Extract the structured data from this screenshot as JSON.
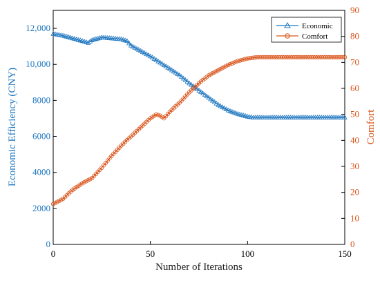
{
  "chart_data": {
    "type": "line",
    "title": "",
    "xlabel": "Number of Iterations",
    "ylabel_left": "Economic Efficiency (CNY)",
    "ylabel_right": "Comfort",
    "xlim": [
      0,
      150
    ],
    "ylim_left": [
      0,
      13000
    ],
    "ylim_right": [
      0,
      90
    ],
    "x_ticks": [
      "0",
      "50",
      "100",
      "150"
    ],
    "y_left_ticks": [
      "0",
      "2000",
      "4000",
      "6000",
      "8000",
      "10,000",
      "12,000"
    ],
    "y_right_ticks": [
      "0",
      "10",
      "20",
      "30",
      "40",
      "50",
      "60",
      "70",
      "80",
      "90"
    ],
    "grid": false,
    "legend_position": "top-right",
    "colors": {
      "economic": "#1f77c0",
      "comfort": "#d95319"
    },
    "series": [
      {
        "name": "Economic",
        "axis": "left",
        "marker": "triangle",
        "x": [
          0,
          5,
          10,
          15,
          18,
          20,
          25,
          30,
          35,
          38,
          40,
          45,
          50,
          55,
          60,
          65,
          70,
          75,
          80,
          85,
          90,
          95,
          100,
          103,
          105,
          110,
          120,
          130,
          140,
          150
        ],
        "values": [
          11700,
          11600,
          11450,
          11300,
          11200,
          11350,
          11500,
          11450,
          11400,
          11300,
          11050,
          10750,
          10450,
          10100,
          9750,
          9400,
          8950,
          8550,
          8150,
          7750,
          7450,
          7250,
          7100,
          7050,
          7050,
          7050,
          7050,
          7050,
          7050,
          7050
        ]
      },
      {
        "name": "Comfort",
        "axis": "right",
        "marker": "circle",
        "x": [
          0,
          5,
          10,
          15,
          20,
          25,
          30,
          35,
          40,
          45,
          50,
          53,
          55,
          57,
          60,
          65,
          70,
          75,
          80,
          85,
          90,
          95,
          100,
          105,
          110,
          120,
          130,
          140,
          150
        ],
        "values": [
          15.5,
          17.5,
          21,
          23.5,
          25.5,
          29.5,
          34,
          38,
          41.5,
          45,
          48.5,
          50,
          49.5,
          48.5,
          51,
          54.5,
          58.5,
          62,
          65,
          67,
          69,
          70.5,
          71.5,
          72,
          72,
          72,
          72,
          72,
          72
        ]
      }
    ]
  }
}
